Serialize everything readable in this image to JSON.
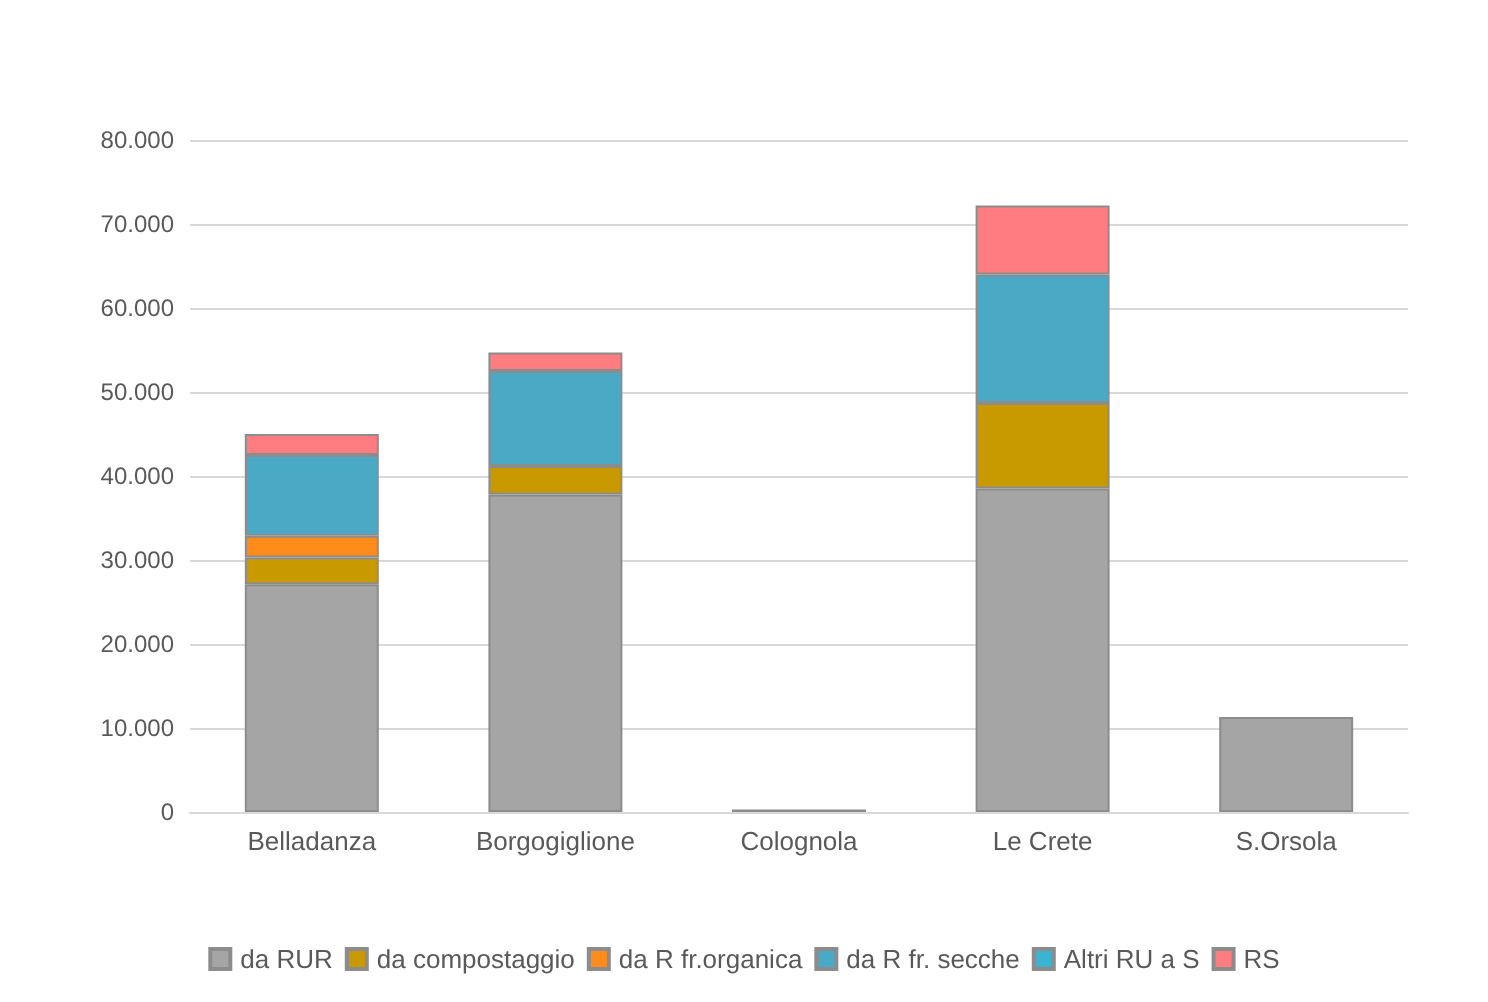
{
  "chart_data": {
    "type": "bar",
    "stacked": true,
    "categories": [
      "Belladanza",
      "Borgogiglione",
      "Colognola",
      "Le Crete",
      "S.Orsola"
    ],
    "series": [
      {
        "name": "da RUR",
        "color": "#a5a5a5",
        "values": [
          27100,
          37800,
          300,
          38500,
          11300
        ]
      },
      {
        "name": "da compostaggio",
        "color": "#c99a00",
        "values": [
          3200,
          3400,
          null,
          10200,
          null
        ]
      },
      {
        "name": "da R fr.organica",
        "color": "#ff8c1a",
        "values": [
          2600,
          null,
          null,
          null,
          null
        ]
      },
      {
        "name": "da R fr. secche",
        "color": "#4aa9c4",
        "values": [
          9600,
          11300,
          null,
          15300,
          null
        ]
      },
      {
        "name": "Altri RU a S",
        "color": "#3bb3d1",
        "values": [
          null,
          null,
          null,
          null,
          null
        ]
      },
      {
        "name": "RS",
        "color": "#ff7c80",
        "values": [
          2500,
          2200,
          null,
          8200,
          null
        ]
      }
    ],
    "ylim": [
      0,
      80000
    ],
    "yticks": [
      0,
      {
        "value": 10000,
        "label": "10.000"
      },
      {
        "value": 20000,
        "label": "20.000"
      },
      {
        "value": 30000,
        "label": "30.000"
      },
      {
        "value": 40000,
        "label": "40.000"
      },
      {
        "value": 50000,
        "label": "50.000"
      },
      {
        "value": 60000,
        "label": "60.000"
      },
      {
        "value": 70000,
        "label": "70.000"
      },
      {
        "value": 80000,
        "label": "80.000"
      }
    ],
    "grid": "y",
    "legend": "bottom"
  }
}
